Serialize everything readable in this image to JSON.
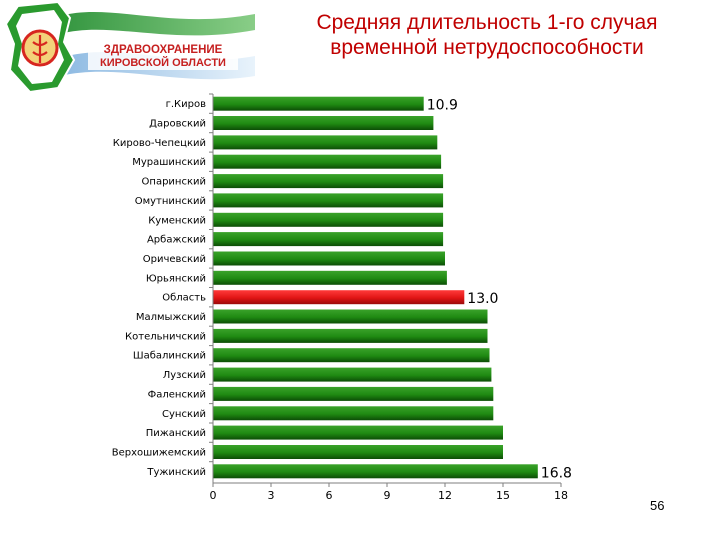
{
  "logo": {
    "line1": "ЗДРАВООХРАНЕНИЕ",
    "line2": "КИРОВСКОЙ ОБЛАСТИ"
  },
  "title": {
    "line1": "Средняя длительность 1-го случая",
    "line2": "временной нетрудоспособности"
  },
  "page_number": "56",
  "colors": {
    "bar_green": "#1f8a12",
    "bar_dark_green": "#0c4d06",
    "bar_highlight": "#e01515",
    "title": "#c00000"
  },
  "chart_data": {
    "type": "bar",
    "orientation": "horizontal",
    "categories": [
      "г.Киров",
      "Даровский",
      "Кирово-Чепецкий",
      "Мурашинский",
      "Опаринский",
      "Омутнинский",
      "Куменский",
      "Арбажский",
      "Оричевский",
      "Юрьянский",
      "Область",
      "Малмыжский",
      "Котельничский",
      "Шабалинский",
      "Лузский",
      "Фаленский",
      "Сунский",
      "Пижанский",
      "Верхошижемский",
      "Тужинский"
    ],
    "values": [
      10.9,
      11.4,
      11.6,
      11.8,
      11.9,
      11.9,
      11.9,
      11.9,
      12.0,
      12.1,
      13.0,
      14.2,
      14.2,
      14.3,
      14.4,
      14.5,
      14.5,
      15.0,
      15.0,
      16.8
    ],
    "highlight": "Область",
    "data_labels": [
      {
        "category": "г.Киров",
        "text": "10.9"
      },
      {
        "category": "Область",
        "text": "13.0"
      },
      {
        "category": "Тужинский",
        "text": "16.8"
      }
    ],
    "xlim": [
      0,
      18
    ],
    "xticks": [
      "0",
      "3",
      "6",
      "9",
      "12",
      "15",
      "18"
    ],
    "grid": false,
    "legend": "none"
  }
}
